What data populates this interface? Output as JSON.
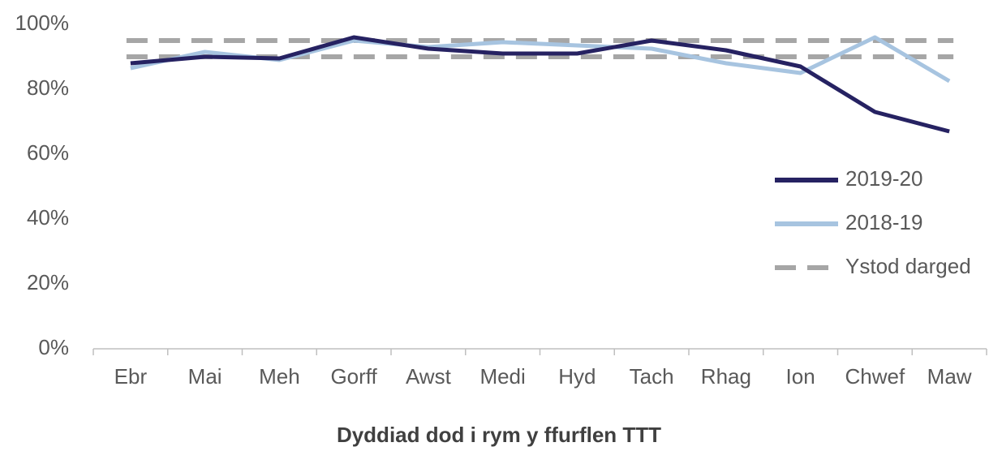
{
  "chart_data": {
    "type": "line",
    "x_label": "Dyddiad dod i rym y ffurflen TTT",
    "categories": [
      "Ebr",
      "Mai",
      "Meh",
      "Gorff",
      "Awst",
      "Medi",
      "Hyd",
      "Tach",
      "Rhag",
      "Ion",
      "Chwef",
      "Maw"
    ],
    "series": [
      {
        "name": "2019-20",
        "color": "#262262",
        "values": [
          88,
          90,
          89.5,
          96,
          92.5,
          91,
          91,
          95,
          92,
          87,
          73,
          67
        ]
      },
      {
        "name": "2018-19",
        "color": "#a7c4e0",
        "values": [
          86.5,
          91.5,
          89,
          95,
          93,
          94.5,
          93.5,
          92.5,
          88,
          85,
          96,
          82.5
        ]
      }
    ],
    "target_range": {
      "name": "Ystod darged",
      "color": "#a6a6a6",
      "values": [
        90,
        95
      ]
    },
    "ylim": [
      0,
      100
    ],
    "yticks": [
      {
        "value": 0,
        "label": "0%"
      },
      {
        "value": 20,
        "label": "20%"
      },
      {
        "value": 40,
        "label": "40%"
      },
      {
        "value": 60,
        "label": "60%"
      },
      {
        "value": 80,
        "label": "80%"
      },
      {
        "value": 100,
        "label": "100%"
      }
    ],
    "grid": false,
    "legend": "right"
  }
}
